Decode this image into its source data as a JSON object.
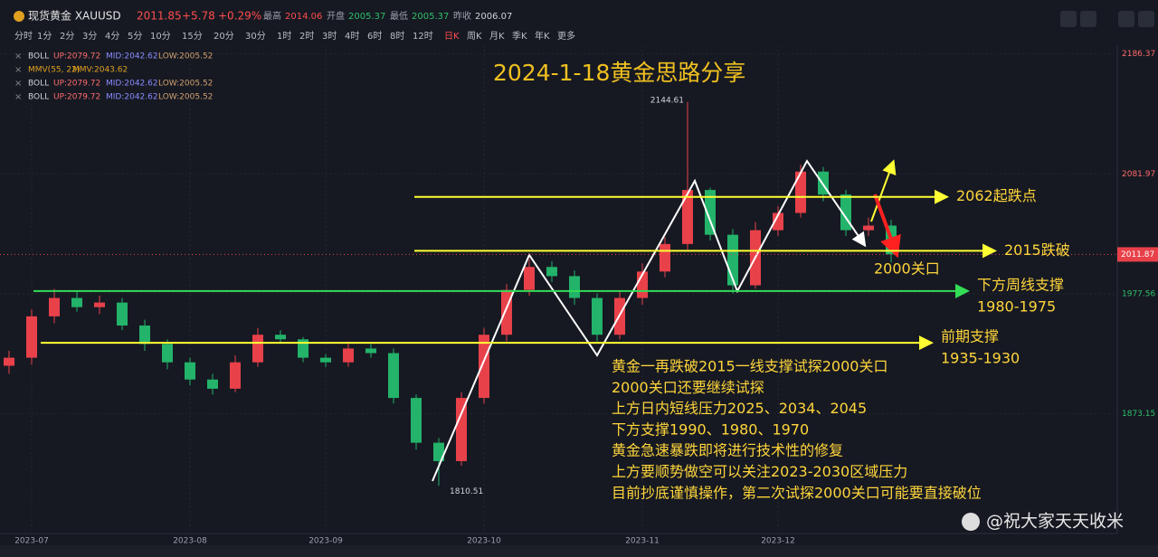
{
  "header": {
    "symbol": "现货黄金 XAUUSD",
    "price": "2011.85",
    "change": "+5.78",
    "change_pct": "+0.29%",
    "stats": [
      {
        "label": "最高",
        "value": "2014.06"
      },
      {
        "label": "开盘",
        "value": "2005.37"
      },
      {
        "label": "最低",
        "value": "2005.37"
      },
      {
        "label": "昨收",
        "value": "2006.07"
      }
    ]
  },
  "periods": [
    "分时",
    "1分",
    "2分",
    "3分",
    "4分",
    "5分",
    "10分",
    "15分",
    "20分",
    "30分",
    "1时",
    "2时",
    "3时",
    "4时",
    "6时",
    "8时",
    "12时",
    "日K",
    "周K",
    "月K",
    "季K",
    "年K",
    "更多"
  ],
  "indicators": [
    [
      "BOLL",
      "UP:2079.72",
      "MID:2042.62",
      "LOW:2005.52"
    ],
    [
      "MMV(55, 22)",
      "MMV:2043.62"
    ],
    [
      "BOLL",
      "UP:2079.72",
      "MID:2042.62",
      "LOW:2005.52"
    ],
    [
      "BOLL",
      "UP:2079.72",
      "MID:2042.62",
      "LOW:2005.52"
    ]
  ],
  "chart_data": {
    "type": "candlestick",
    "title": "2024-1-18黄金思路分享",
    "categories": [
      null,
      "2023-07",
      null,
      null,
      null,
      null,
      null,
      null,
      "2023-08",
      null,
      null,
      null,
      null,
      null,
      "2023-09",
      null,
      null,
      null,
      null,
      null,
      null,
      "2023-10",
      null,
      null,
      null,
      null,
      null,
      null,
      "2023-11",
      null,
      null,
      null,
      null,
      null,
      "2023-12",
      null,
      null,
      null,
      null,
      null
    ],
    "open": [
      1915,
      1922,
      1958,
      1974,
      1966,
      1970,
      1950,
      1934,
      1918,
      1903,
      1895,
      1918,
      1942,
      1938,
      1922,
      1918,
      1930,
      1926,
      1887,
      1848,
      1832,
      1887,
      1942,
      1981,
      2001,
      1993,
      1974,
      1942,
      1974,
      1997,
      2021,
      2068,
      2029,
      1985,
      2033,
      2048,
      2084,
      2064,
      2033,
      2037
    ],
    "high": [
      1928,
      1964,
      1982,
      1980,
      1976,
      1974,
      1955,
      1938,
      1922,
      1908,
      1924,
      1948,
      1946,
      1940,
      1925,
      1936,
      1934,
      1930,
      1890,
      1852,
      1892,
      1948,
      1986,
      2008,
      2006,
      1998,
      1978,
      1980,
      2004,
      2027,
      2144.61,
      2070,
      2034,
      2040,
      2054,
      2090,
      2088,
      2068,
      2044,
      2042
    ],
    "low": [
      1908,
      1916,
      1952,
      1962,
      1960,
      1946,
      1928,
      1912,
      1898,
      1890,
      1892,
      1914,
      1934,
      1918,
      1914,
      1914,
      1922,
      1882,
      1842,
      1810.51,
      1828,
      1882,
      1936,
      1976,
      1988,
      1968,
      1936,
      1938,
      1968,
      1992,
      2016,
      2024,
      1978,
      1982,
      2028,
      2044,
      2058,
      2028,
      2028,
      2005
    ],
    "close": [
      1922,
      1958,
      1974,
      1966,
      1970,
      1950,
      1934,
      1918,
      1903,
      1895,
      1918,
      1942,
      1938,
      1922,
      1918,
      1930,
      1926,
      1887,
      1848,
      1832,
      1887,
      1942,
      1981,
      2001,
      1993,
      1974,
      1942,
      1974,
      1997,
      2021,
      2068,
      2029,
      1985,
      2033,
      2048,
      2084,
      2064,
      2033,
      2037,
      2012
    ],
    "up_color": "#e8414a",
    "down_color": "#23b36a",
    "ylim": [
      1769,
      2194
    ],
    "yticks": [
      2186.37,
      2081.97,
      1977.56,
      1873.15
    ],
    "last_price": 2011.87,
    "levels": [
      {
        "value": 2062,
        "label": [
          "2062起跌点"
        ],
        "color": "#ffff33"
      },
      {
        "value": 2015,
        "label": [
          "2015跌破"
        ],
        "color": "#ffff33"
      },
      {
        "value": 1980,
        "label": [
          "下方周线支撑",
          "1980-1975"
        ],
        "color": "#33dd55"
      },
      {
        "value": 1935,
        "label": [
          "前期支撑",
          "1935-1930"
        ],
        "color": "#ffff33"
      }
    ],
    "annotation": "2000关口",
    "notes": [
      "黄金一再跌破2015一线支撑试探2000关口",
      "2000关口还要继续试探",
      "上方日内短线压力2025、2034、2045",
      "下方支撑1990、1980、1970",
      "黄金急速暴跌即将进行技术性的修复",
      "上方要顺势做空可以关注2023-2030区域压力",
      "目前抄底谨慎操作，第二次试探2000关口可能要直接破位"
    ],
    "watermark": "@祝大家天天收米"
  }
}
